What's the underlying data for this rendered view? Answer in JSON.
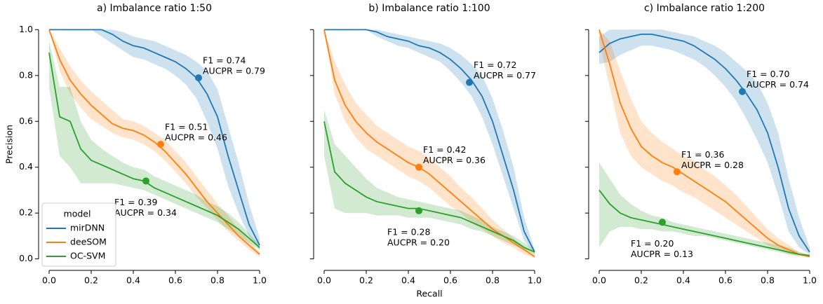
{
  "chart_data": [
    {
      "type": "line",
      "title": "a)  Imbalance ratio 1:50",
      "ylabel": "Precision",
      "legend": "lower left",
      "legend_title": "model",
      "x": [
        0,
        0.05,
        0.1,
        0.15,
        0.2,
        0.25,
        0.3,
        0.35,
        0.4,
        0.45,
        0.5,
        0.55,
        0.6,
        0.65,
        0.7,
        0.75,
        0.8,
        0.85,
        0.9,
        0.95,
        1.0
      ],
      "xlim": [
        -0.05,
        1.05
      ],
      "ylim": [
        -0.05,
        1.05
      ],
      "xticks": [
        {
          "value": 0,
          "label": "0.0"
        },
        {
          "value": 0.2,
          "label": "0.2"
        },
        {
          "value": 0.4,
          "label": "0.4"
        },
        {
          "value": 0.6,
          "label": "0.6"
        },
        {
          "value": 0.8,
          "label": "0.8"
        },
        {
          "value": 1,
          "label": "1.0"
        }
      ],
      "yticks": [
        {
          "value": 0,
          "label": "0.0"
        },
        {
          "value": 0.2,
          "label": "0.2"
        },
        {
          "value": 0.4,
          "label": "0.4"
        },
        {
          "value": 0.6,
          "label": "0.6"
        },
        {
          "value": 0.8,
          "label": "0.8"
        },
        {
          "value": 1,
          "label": "1.0"
        }
      ],
      "series": [
        {
          "name": "mirDNN",
          "color": "#1f77b4",
          "values": [
            1,
            1,
            1,
            1,
            1,
            1,
            0.98,
            0.95,
            0.93,
            0.92,
            0.9,
            0.88,
            0.86,
            0.83,
            0.79,
            0.72,
            0.62,
            0.45,
            0.3,
            0.15,
            0.06
          ],
          "lower": [
            1,
            1,
            1,
            1,
            1,
            0.97,
            0.94,
            0.91,
            0.88,
            0.87,
            0.85,
            0.83,
            0.8,
            0.76,
            0.7,
            0.6,
            0.48,
            0.32,
            0.2,
            0.1,
            0.04
          ],
          "upper": [
            1,
            1,
            1,
            1,
            1,
            1,
            1,
            0.99,
            0.97,
            0.96,
            0.95,
            0.93,
            0.91,
            0.89,
            0.86,
            0.82,
            0.74,
            0.58,
            0.42,
            0.24,
            0.09
          ],
          "marker": {
            "x": 0.71,
            "y": 0.79,
            "labels": [
              "F1 =  0.74",
              "AUCPR =  0.79"
            ]
          }
        },
        {
          "name": "deeSOM",
          "color": "#ff7f0e",
          "values": [
            1,
            0.87,
            0.78,
            0.72,
            0.67,
            0.63,
            0.59,
            0.57,
            0.56,
            0.54,
            0.51,
            0.47,
            0.42,
            0.37,
            0.31,
            0.25,
            0.2,
            0.15,
            0.1,
            0.06,
            0.02
          ],
          "lower": [
            1,
            0.82,
            0.72,
            0.66,
            0.61,
            0.58,
            0.55,
            0.53,
            0.52,
            0.5,
            0.47,
            0.43,
            0.38,
            0.33,
            0.27,
            0.22,
            0.17,
            0.12,
            0.08,
            0.04,
            0.01
          ],
          "upper": [
            1,
            0.92,
            0.84,
            0.78,
            0.73,
            0.69,
            0.65,
            0.61,
            0.6,
            0.58,
            0.55,
            0.52,
            0.47,
            0.42,
            0.36,
            0.3,
            0.24,
            0.19,
            0.13,
            0.08,
            0.03
          ],
          "marker": {
            "x": 0.53,
            "y": 0.5,
            "labels": [
              "F1 =  0.51",
              "AUCPR =  0.46"
            ]
          }
        },
        {
          "name": "OC-SVM",
          "color": "#2ca02c",
          "values": [
            0.9,
            0.62,
            0.6,
            0.48,
            0.43,
            0.41,
            0.39,
            0.37,
            0.35,
            0.34,
            0.31,
            0.29,
            0.27,
            0.25,
            0.23,
            0.21,
            0.19,
            0.16,
            0.13,
            0.09,
            0.05
          ],
          "lower": [
            0.75,
            0.45,
            0.4,
            0.33,
            0.33,
            0.33,
            0.33,
            0.32,
            0.31,
            0.3,
            0.28,
            0.26,
            0.24,
            0.22,
            0.2,
            0.18,
            0.16,
            0.13,
            0.1,
            0.07,
            0.04
          ],
          "upper": [
            0.95,
            0.75,
            0.75,
            0.6,
            0.52,
            0.48,
            0.45,
            0.42,
            0.4,
            0.39,
            0.36,
            0.34,
            0.32,
            0.3,
            0.28,
            0.25,
            0.23,
            0.2,
            0.16,
            0.11,
            0.06
          ],
          "marker": {
            "x": 0.46,
            "y": 0.34,
            "labels": [
              "F1 =  0.39",
              "AUCPR =  0.34"
            ]
          }
        }
      ]
    },
    {
      "type": "line",
      "title": "b)  Imbalance ratio 1:100",
      "xlabel": "Recall",
      "ytick_labels": false,
      "x": [
        0,
        0.05,
        0.1,
        0.15,
        0.2,
        0.25,
        0.3,
        0.35,
        0.4,
        0.45,
        0.5,
        0.55,
        0.6,
        0.65,
        0.7,
        0.75,
        0.8,
        0.85,
        0.9,
        0.95,
        1.0
      ],
      "xlim": [
        -0.05,
        1.05
      ],
      "ylim": [
        -0.05,
        1.05
      ],
      "xticks": [
        {
          "value": 0,
          "label": "0.0"
        },
        {
          "value": 0.2,
          "label": "0.2"
        },
        {
          "value": 0.4,
          "label": "0.4"
        },
        {
          "value": 0.6,
          "label": "0.6"
        },
        {
          "value": 0.8,
          "label": "0.8"
        },
        {
          "value": 1,
          "label": "1.0"
        }
      ],
      "yticks": [
        0,
        0.2,
        0.4,
        0.6,
        0.8,
        1
      ],
      "series": [
        {
          "name": "mirDNN",
          "color": "#1f77b4",
          "values": [
            1,
            1,
            1,
            1,
            1,
            0.99,
            0.97,
            0.96,
            0.95,
            0.93,
            0.92,
            0.9,
            0.87,
            0.83,
            0.78,
            0.71,
            0.6,
            0.45,
            0.3,
            0.12,
            0.03
          ],
          "lower": [
            1,
            1,
            1,
            1,
            1,
            0.97,
            0.95,
            0.93,
            0.92,
            0.9,
            0.88,
            0.86,
            0.82,
            0.77,
            0.71,
            0.62,
            0.5,
            0.36,
            0.22,
            0.08,
            0.02
          ],
          "upper": [
            1,
            1,
            1,
            1,
            1,
            1,
            0.99,
            0.98,
            0.97,
            0.96,
            0.95,
            0.94,
            0.92,
            0.89,
            0.85,
            0.8,
            0.7,
            0.56,
            0.4,
            0.18,
            0.04
          ],
          "marker": {
            "x": 0.69,
            "y": 0.77,
            "labels": [
              "F1 =  0.72",
              "AUCPR =  0.77"
            ]
          }
        },
        {
          "name": "deeSOM",
          "color": "#ff7f0e",
          "values": [
            1,
            0.78,
            0.67,
            0.6,
            0.55,
            0.51,
            0.48,
            0.45,
            0.42,
            0.4,
            0.37,
            0.33,
            0.29,
            0.25,
            0.21,
            0.17,
            0.13,
            0.1,
            0.07,
            0.04,
            0.01
          ],
          "lower": [
            1,
            0.72,
            0.6,
            0.53,
            0.48,
            0.45,
            0.42,
            0.39,
            0.36,
            0.34,
            0.31,
            0.27,
            0.23,
            0.2,
            0.16,
            0.13,
            0.1,
            0.07,
            0.05,
            0.02,
            0.005
          ],
          "upper": [
            1,
            0.86,
            0.76,
            0.68,
            0.63,
            0.58,
            0.55,
            0.52,
            0.49,
            0.47,
            0.44,
            0.4,
            0.36,
            0.31,
            0.27,
            0.22,
            0.17,
            0.13,
            0.09,
            0.05,
            0.02
          ],
          "marker": {
            "x": 0.45,
            "y": 0.4,
            "labels": [
              "F1 =  0.42",
              "AUCPR =  0.36"
            ]
          }
        },
        {
          "name": "OC-SVM",
          "color": "#2ca02c",
          "values": [
            0.6,
            0.38,
            0.33,
            0.3,
            0.27,
            0.25,
            0.24,
            0.23,
            0.22,
            0.22,
            0.21,
            0.2,
            0.19,
            0.18,
            0.16,
            0.14,
            0.12,
            0.1,
            0.08,
            0.05,
            0.03
          ],
          "lower": [
            0.45,
            0.22,
            0.2,
            0.2,
            0.2,
            0.19,
            0.19,
            0.19,
            0.18,
            0.18,
            0.18,
            0.17,
            0.16,
            0.15,
            0.13,
            0.12,
            0.1,
            0.08,
            0.06,
            0.04,
            0.02
          ],
          "upper": [
            0.65,
            0.5,
            0.45,
            0.4,
            0.35,
            0.31,
            0.29,
            0.27,
            0.26,
            0.25,
            0.24,
            0.23,
            0.22,
            0.21,
            0.19,
            0.17,
            0.14,
            0.12,
            0.1,
            0.07,
            0.04
          ],
          "marker": {
            "x": 0.45,
            "y": 0.21,
            "labels": [
              "F1 =  0.28",
              "AUCPR =  0.20"
            ]
          }
        }
      ]
    },
    {
      "type": "line",
      "title": "c)  Imbalance ratio 1:200",
      "ytick_labels": false,
      "x": [
        0,
        0.05,
        0.1,
        0.15,
        0.2,
        0.25,
        0.3,
        0.35,
        0.4,
        0.45,
        0.5,
        0.55,
        0.6,
        0.65,
        0.7,
        0.75,
        0.8,
        0.85,
        0.9,
        0.95,
        1.0
      ],
      "xlim": [
        -0.05,
        1.05
      ],
      "ylim": [
        -0.05,
        1.05
      ],
      "xticks": [
        {
          "value": 0,
          "label": "0.0"
        },
        {
          "value": 0.2,
          "label": "0.2"
        },
        {
          "value": 0.4,
          "label": "0.4"
        },
        {
          "value": 0.6,
          "label": "0.6"
        },
        {
          "value": 0.8,
          "label": "0.8"
        },
        {
          "value": 1,
          "label": "1.0"
        }
      ],
      "yticks": [
        0,
        0.2,
        0.4,
        0.6,
        0.8,
        1
      ],
      "series": [
        {
          "name": "mirDNN",
          "color": "#1f77b4",
          "values": [
            0.9,
            0.94,
            0.96,
            0.97,
            0.98,
            0.98,
            0.97,
            0.96,
            0.95,
            0.93,
            0.9,
            0.87,
            0.83,
            0.78,
            0.72,
            0.65,
            0.55,
            0.4,
            0.22,
            0.1,
            0.03
          ],
          "lower": [
            0.85,
            0.86,
            0.89,
            0.91,
            0.93,
            0.93,
            0.92,
            0.91,
            0.89,
            0.87,
            0.84,
            0.8,
            0.75,
            0.69,
            0.61,
            0.52,
            0.42,
            0.28,
            0.12,
            0.05,
            0.02
          ],
          "upper": [
            0.97,
            1,
            1,
            1,
            1,
            1,
            1,
            0.99,
            0.98,
            0.97,
            0.95,
            0.93,
            0.9,
            0.86,
            0.82,
            0.77,
            0.68,
            0.55,
            0.35,
            0.18,
            0.05
          ],
          "marker": {
            "x": 0.68,
            "y": 0.73,
            "labels": [
              "F1 =  0.70",
              "AUCPR =  0.74"
            ]
          }
        },
        {
          "name": "deeSOM",
          "color": "#ff7f0e",
          "values": [
            1,
            0.85,
            0.68,
            0.57,
            0.49,
            0.45,
            0.42,
            0.4,
            0.37,
            0.34,
            0.31,
            0.28,
            0.25,
            0.21,
            0.17,
            0.13,
            0.09,
            0.06,
            0.04,
            0.02,
            0.01
          ],
          "lower": [
            0.95,
            0.75,
            0.55,
            0.45,
            0.4,
            0.37,
            0.34,
            0.32,
            0.29,
            0.27,
            0.24,
            0.21,
            0.18,
            0.15,
            0.12,
            0.09,
            0.06,
            0.04,
            0.02,
            0.01,
            0.005
          ],
          "upper": [
            1,
            0.95,
            0.82,
            0.7,
            0.6,
            0.55,
            0.51,
            0.48,
            0.45,
            0.43,
            0.39,
            0.36,
            0.32,
            0.28,
            0.23,
            0.18,
            0.13,
            0.09,
            0.06,
            0.03,
            0.015
          ],
          "marker": {
            "x": 0.37,
            "y": 0.38,
            "labels": [
              "F1 =  0.36",
              "AUCPR =  0.28"
            ]
          }
        },
        {
          "name": "OC-SVM",
          "color": "#2ca02c",
          "values": [
            0.3,
            0.24,
            0.2,
            0.18,
            0.17,
            0.16,
            0.15,
            0.14,
            0.13,
            0.12,
            0.11,
            0.1,
            0.09,
            0.08,
            0.07,
            0.06,
            0.05,
            0.04,
            0.03,
            0.02,
            0.015
          ],
          "lower": [
            0.05,
            0.12,
            0.14,
            0.14,
            0.13,
            0.13,
            0.12,
            0.12,
            0.11,
            0.1,
            0.1,
            0.09,
            0.08,
            0.07,
            0.06,
            0.05,
            0.04,
            0.03,
            0.02,
            0.015,
            0.01
          ],
          "upper": [
            0.42,
            0.35,
            0.28,
            0.24,
            0.21,
            0.19,
            0.18,
            0.16,
            0.15,
            0.14,
            0.13,
            0.12,
            0.11,
            0.1,
            0.09,
            0.08,
            0.07,
            0.06,
            0.05,
            0.03,
            0.02
          ],
          "marker": {
            "x": 0.3,
            "y": 0.16,
            "labels": [
              "F1 =  0.20",
              "AUCPR =  0.13"
            ]
          }
        }
      ]
    }
  ]
}
